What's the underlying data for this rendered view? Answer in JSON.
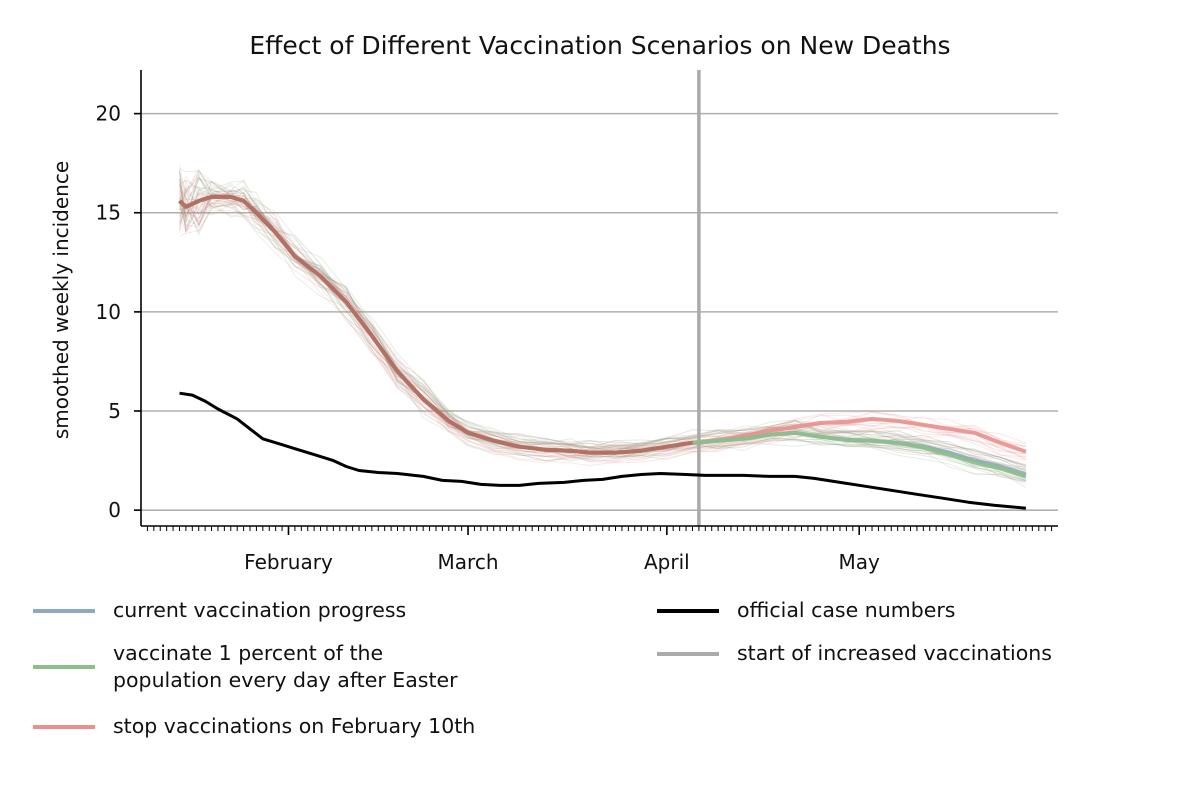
{
  "chart_data": {
    "type": "line",
    "title": "Effect of Different Vaccination Scenarios on New Deaths",
    "xlabel": "",
    "ylabel": "smoothed weekly incidence",
    "x_ticks": [
      {
        "label": "February",
        "date": "2021-02-01"
      },
      {
        "label": "March",
        "date": "2021-03-01"
      },
      {
        "label": "April",
        "date": "2021-04-01"
      },
      {
        "label": "May",
        "date": "2021-05-01"
      }
    ],
    "xlim": [
      "2021-01-09",
      "2021-06-01"
    ],
    "ylim": [
      -0.8,
      22.2
    ],
    "y_ticks": [
      0,
      5,
      10,
      15,
      20
    ],
    "grid": {
      "y": true,
      "x": false
    },
    "vline": {
      "date": "2021-04-06",
      "label": "start of increased vaccinations",
      "color": "#aaaaaa"
    },
    "series": [
      {
        "name": "current vaccination progress",
        "color": "#8fa8c3",
        "points": [
          [
            "2021-01-15",
            15.6
          ],
          [
            "2021-01-16",
            15.3
          ],
          [
            "2021-01-18",
            15.6
          ],
          [
            "2021-01-20",
            15.8
          ],
          [
            "2021-01-23",
            15.8
          ],
          [
            "2021-01-25",
            15.6
          ],
          [
            "2021-01-27",
            15.0
          ],
          [
            "2021-01-30",
            14.0
          ],
          [
            "2021-02-02",
            12.8
          ],
          [
            "2021-02-06",
            11.8
          ],
          [
            "2021-02-10",
            10.5
          ],
          [
            "2021-02-14",
            8.8
          ],
          [
            "2021-02-18",
            7.0
          ],
          [
            "2021-02-22",
            5.6
          ],
          [
            "2021-02-26",
            4.5
          ],
          [
            "2021-03-01",
            3.9
          ],
          [
            "2021-03-05",
            3.5
          ],
          [
            "2021-03-09",
            3.2
          ],
          [
            "2021-03-13",
            3.05
          ],
          [
            "2021-03-17",
            3.0
          ],
          [
            "2021-03-20",
            2.9
          ],
          [
            "2021-03-24",
            2.9
          ],
          [
            "2021-03-28",
            3.0
          ],
          [
            "2021-04-01",
            3.2
          ],
          [
            "2021-04-05",
            3.4
          ],
          [
            "2021-04-09",
            3.5
          ],
          [
            "2021-04-13",
            3.6
          ],
          [
            "2021-04-17",
            3.8
          ],
          [
            "2021-04-21",
            3.9
          ],
          [
            "2021-04-25",
            3.7
          ],
          [
            "2021-04-29",
            3.55
          ],
          [
            "2021-05-03",
            3.5
          ],
          [
            "2021-05-07",
            3.4
          ],
          [
            "2021-05-11",
            3.2
          ],
          [
            "2021-05-15",
            2.9
          ],
          [
            "2021-05-19",
            2.5
          ],
          [
            "2021-05-23",
            2.2
          ],
          [
            "2021-05-27",
            1.8
          ]
        ]
      },
      {
        "name": "vaccinate 1 percent of the population every day after Easter",
        "color": "#8dbf88",
        "points": [
          [
            "2021-01-15",
            15.6
          ],
          [
            "2021-01-16",
            15.3
          ],
          [
            "2021-01-18",
            15.6
          ],
          [
            "2021-01-20",
            15.8
          ],
          [
            "2021-01-23",
            15.8
          ],
          [
            "2021-01-25",
            15.6
          ],
          [
            "2021-01-27",
            15.0
          ],
          [
            "2021-01-30",
            14.0
          ],
          [
            "2021-02-02",
            12.8
          ],
          [
            "2021-02-06",
            11.8
          ],
          [
            "2021-02-10",
            10.5
          ],
          [
            "2021-02-14",
            8.8
          ],
          [
            "2021-02-18",
            7.0
          ],
          [
            "2021-02-22",
            5.6
          ],
          [
            "2021-02-26",
            4.5
          ],
          [
            "2021-03-01",
            3.9
          ],
          [
            "2021-03-05",
            3.5
          ],
          [
            "2021-03-09",
            3.2
          ],
          [
            "2021-03-13",
            3.05
          ],
          [
            "2021-03-17",
            3.0
          ],
          [
            "2021-03-20",
            2.9
          ],
          [
            "2021-03-24",
            2.9
          ],
          [
            "2021-03-28",
            3.0
          ],
          [
            "2021-04-01",
            3.2
          ],
          [
            "2021-04-05",
            3.4
          ],
          [
            "2021-04-09",
            3.5
          ],
          [
            "2021-04-13",
            3.6
          ],
          [
            "2021-04-17",
            3.8
          ],
          [
            "2021-04-21",
            3.9
          ],
          [
            "2021-04-25",
            3.7
          ],
          [
            "2021-04-29",
            3.55
          ],
          [
            "2021-05-03",
            3.5
          ],
          [
            "2021-05-07",
            3.4
          ],
          [
            "2021-05-11",
            3.15
          ],
          [
            "2021-05-15",
            2.8
          ],
          [
            "2021-05-19",
            2.4
          ],
          [
            "2021-05-23",
            2.1
          ],
          [
            "2021-05-27",
            1.7
          ]
        ]
      },
      {
        "name": "stop vaccinations on February 10th",
        "color": "#e8908d",
        "points": [
          [
            "2021-01-15",
            15.6
          ],
          [
            "2021-01-16",
            15.3
          ],
          [
            "2021-01-18",
            15.6
          ],
          [
            "2021-01-20",
            15.8
          ],
          [
            "2021-01-23",
            15.8
          ],
          [
            "2021-01-25",
            15.6
          ],
          [
            "2021-01-27",
            15.0
          ],
          [
            "2021-01-30",
            14.0
          ],
          [
            "2021-02-02",
            12.8
          ],
          [
            "2021-02-06",
            11.8
          ],
          [
            "2021-02-10",
            10.5
          ],
          [
            "2021-02-14",
            8.8
          ],
          [
            "2021-02-18",
            7.0
          ],
          [
            "2021-02-22",
            5.6
          ],
          [
            "2021-02-26",
            4.5
          ],
          [
            "2021-03-01",
            3.9
          ],
          [
            "2021-03-05",
            3.5
          ],
          [
            "2021-03-09",
            3.2
          ],
          [
            "2021-03-13",
            3.05
          ],
          [
            "2021-03-17",
            3.0
          ],
          [
            "2021-03-20",
            2.9
          ],
          [
            "2021-03-24",
            2.9
          ],
          [
            "2021-03-28",
            3.0
          ],
          [
            "2021-04-01",
            3.2
          ],
          [
            "2021-04-05",
            3.4
          ],
          [
            "2021-04-09",
            3.55
          ],
          [
            "2021-04-13",
            3.75
          ],
          [
            "2021-04-17",
            4.0
          ],
          [
            "2021-04-21",
            4.2
          ],
          [
            "2021-04-25",
            4.4
          ],
          [
            "2021-04-29",
            4.45
          ],
          [
            "2021-05-03",
            4.6
          ],
          [
            "2021-05-07",
            4.5
          ],
          [
            "2021-05-11",
            4.3
          ],
          [
            "2021-05-15",
            4.1
          ],
          [
            "2021-05-19",
            3.9
          ],
          [
            "2021-05-23",
            3.4
          ],
          [
            "2021-05-27",
            2.95
          ]
        ]
      },
      {
        "name": "official case numbers",
        "color": "#000000",
        "points": [
          [
            "2021-01-15",
            5.9
          ],
          [
            "2021-01-17",
            5.8
          ],
          [
            "2021-01-19",
            5.5
          ],
          [
            "2021-01-21",
            5.1
          ],
          [
            "2021-01-24",
            4.6
          ],
          [
            "2021-01-26",
            4.1
          ],
          [
            "2021-01-28",
            3.6
          ],
          [
            "2021-01-31",
            3.3
          ],
          [
            "2021-02-02",
            3.1
          ],
          [
            "2021-02-05",
            2.8
          ],
          [
            "2021-02-08",
            2.5
          ],
          [
            "2021-02-10",
            2.2
          ],
          [
            "2021-02-12",
            2.0
          ],
          [
            "2021-02-15",
            1.9
          ],
          [
            "2021-02-18",
            1.85
          ],
          [
            "2021-02-22",
            1.7
          ],
          [
            "2021-02-25",
            1.5
          ],
          [
            "2021-02-28",
            1.45
          ],
          [
            "2021-03-03",
            1.3
          ],
          [
            "2021-03-06",
            1.25
          ],
          [
            "2021-03-09",
            1.25
          ],
          [
            "2021-03-12",
            1.35
          ],
          [
            "2021-03-16",
            1.4
          ],
          [
            "2021-03-19",
            1.5
          ],
          [
            "2021-03-22",
            1.55
          ],
          [
            "2021-03-25",
            1.7
          ],
          [
            "2021-03-28",
            1.8
          ],
          [
            "2021-03-31",
            1.85
          ],
          [
            "2021-04-04",
            1.8
          ],
          [
            "2021-04-07",
            1.75
          ],
          [
            "2021-04-10",
            1.75
          ],
          [
            "2021-04-13",
            1.75
          ],
          [
            "2021-04-17",
            1.7
          ],
          [
            "2021-04-21",
            1.7
          ],
          [
            "2021-04-24",
            1.6
          ],
          [
            "2021-04-28",
            1.4
          ],
          [
            "2021-05-02",
            1.2
          ],
          [
            "2021-05-06",
            1.0
          ],
          [
            "2021-05-10",
            0.8
          ],
          [
            "2021-05-14",
            0.6
          ],
          [
            "2021-05-18",
            0.4
          ],
          [
            "2021-05-22",
            0.25
          ],
          [
            "2021-05-27",
            0.1
          ]
        ]
      }
    ],
    "legend": {
      "placement": "below",
      "columns": [
        [
          "current vaccination progress",
          "vaccinate 1 percent of the population every day after Easter",
          "stop vaccinations on February 10th"
        ],
        [
          "official case numbers",
          "start of increased vaccinations"
        ]
      ]
    }
  },
  "legend_items": {
    "current": "current vaccination progress",
    "vaccinate_line1": "vaccinate 1 percent of the",
    "vaccinate_line2": "population every day after Easter",
    "stop": "stop vaccinations on February 10th",
    "official": "official case numbers",
    "start": "start of increased vaccinations"
  },
  "colors": {
    "current": "#8fa8c3",
    "vaccinate": "#8dbf88",
    "stop": "#e8908d",
    "official": "#000000",
    "start": "#aaaaaa",
    "grid": "#b0b0b0"
  }
}
